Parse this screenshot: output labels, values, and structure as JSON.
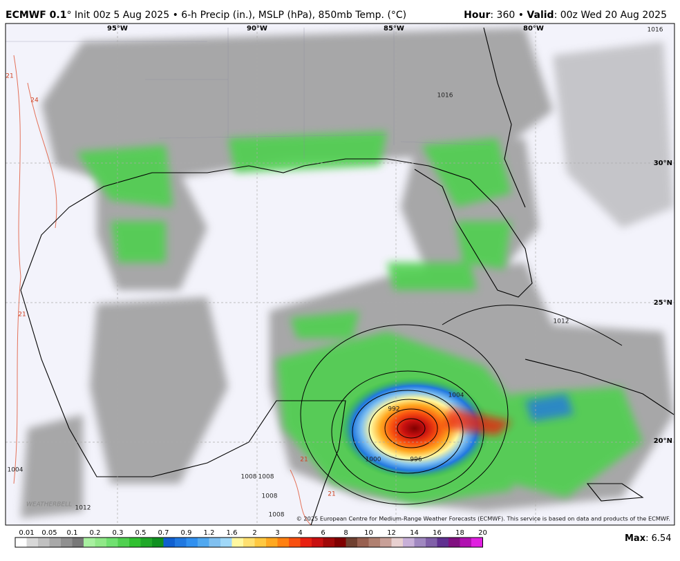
{
  "header": {
    "model": "ECMWF 0.1",
    "degree": "°",
    "description": "Init 00z 5 Aug 2025 • 6-h Precip (in.), MSLP (hPa), 850mb Temp. (°C)",
    "hour_label": "Hour",
    "hour": ": 360 • ",
    "valid_label": "Valid",
    "valid": ": 00z Wed 20 Aug 2025"
  },
  "map": {
    "longitude_labels": [
      "95°W",
      "90°W",
      "85°W",
      "80°W"
    ],
    "latitude_labels": [
      "30°N",
      "25°N",
      "20°N"
    ],
    "isobar_labels": [
      "1016",
      "1016",
      "1012",
      "1004",
      "992",
      "996",
      "1000",
      "1008",
      "1008",
      "1008",
      "1012",
      "1008",
      "1004"
    ],
    "temp_labels": [
      "21",
      "24",
      "21",
      "21",
      "21"
    ],
    "logo": "WEATHERBELL",
    "copyright": "© 2025 European Centre for Medium-Range Weather Forecasts (ECMWF). This service is based on data and products of the ECMWF."
  },
  "colorbar": {
    "labels": [
      "0.01",
      "0.05",
      "0.1",
      "0.2",
      "0.3",
      "0.5",
      "0.7",
      "0.9",
      "1.2",
      "1.6",
      "2",
      "3",
      "4",
      "6",
      "8",
      "10",
      "12",
      "14",
      "16",
      "18",
      "20"
    ],
    "colors": [
      "#ffffff",
      "#d8d8d8",
      "#c0c0c0",
      "#a8a8a8",
      "#909090",
      "#787878",
      "#a8f0a0",
      "#90e888",
      "#70e070",
      "#50d050",
      "#30c030",
      "#20a828",
      "#109020",
      "#1060d0",
      "#2078e0",
      "#3090f0",
      "#50a8f0",
      "#80c0f0",
      "#a0d8f8",
      "#fff8a0",
      "#ffe070",
      "#ffc840",
      "#ffa820",
      "#ff8010",
      "#f85010",
      "#e82010",
      "#c81010",
      "#a00808",
      "#800000",
      "#704030",
      "#986050",
      "#b08070",
      "#c8a098",
      "#e8d0d0",
      "#c8b0d8",
      "#a088c0",
      "#8060a8",
      "#603090",
      "#801080",
      "#b010b0",
      "#e020e0"
    ],
    "max_label": "Max",
    "max_value": ": 6.54"
  }
}
